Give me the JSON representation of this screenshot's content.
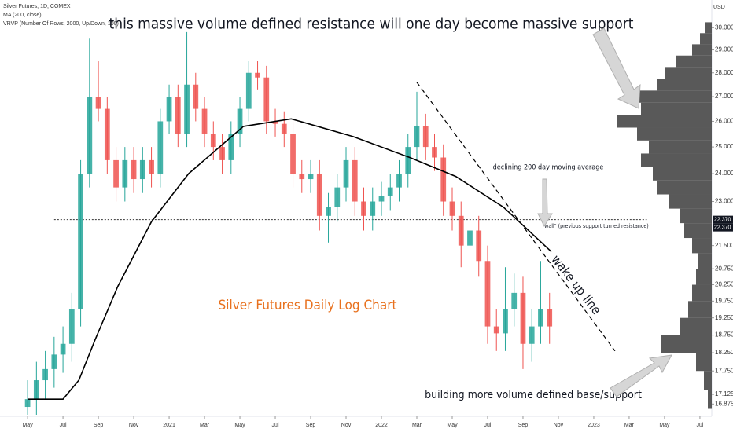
{
  "chart_data": {
    "type": "candlestick",
    "legend_lines": [
      "Silver Futures, 1D, COMEX",
      "MA (200, close)",
      "VRVP (Number Of Rows, 2000, Up/Down, 100)"
    ],
    "y_axis_label": "USD",
    "log_scale": true,
    "up_color": "#26a69a",
    "down_color": "#ef5350",
    "xlim": [
      -1.56,
      38.67
    ],
    "ylim": [
      16.56,
      31.3
    ],
    "xticks": [
      {
        "value": 0,
        "label": "May"
      },
      {
        "value": 2,
        "label": "Jul"
      },
      {
        "value": 4,
        "label": "Sep"
      },
      {
        "value": 6,
        "label": "Nov"
      },
      {
        "value": 8,
        "label": "2021"
      },
      {
        "value": 10,
        "label": "Mar"
      },
      {
        "value": 12,
        "label": "May"
      },
      {
        "value": 14,
        "label": "Jul"
      },
      {
        "value": 16,
        "label": "Sep"
      },
      {
        "value": 18,
        "label": "Nov"
      },
      {
        "value": 20,
        "label": "2022"
      },
      {
        "value": 22,
        "label": "Mar"
      },
      {
        "value": 24,
        "label": "May"
      },
      {
        "value": 26,
        "label": "Jul"
      },
      {
        "value": 28,
        "label": "Sep"
      },
      {
        "value": 30,
        "label": "Nov"
      },
      {
        "value": 32,
        "label": "2023"
      },
      {
        "value": 34,
        "label": "Mar"
      },
      {
        "value": 36,
        "label": "May"
      },
      {
        "value": 38,
        "label": "Jul"
      }
    ],
    "yticks": [
      {
        "value": 30,
        "label": "30.000"
      },
      {
        "value": 29,
        "label": "29.000"
      },
      {
        "value": 28,
        "label": "28.000"
      },
      {
        "value": 27,
        "label": "27.000"
      },
      {
        "value": 26,
        "label": "26.000"
      },
      {
        "value": 25,
        "label": "25.000"
      },
      {
        "value": 24,
        "label": "24.000"
      },
      {
        "value": 23,
        "label": "23.000"
      },
      {
        "value": 21.5,
        "label": "21.500"
      },
      {
        "value": 20.75,
        "label": "20.750"
      },
      {
        "value": 20.25,
        "label": "20.250"
      },
      {
        "value": 19.75,
        "label": "19.750"
      },
      {
        "value": 19.25,
        "label": "19.250"
      },
      {
        "value": 18.75,
        "label": "18.750"
      },
      {
        "value": 18.25,
        "label": "18.250"
      },
      {
        "value": 17.75,
        "label": "17.750"
      },
      {
        "value": 17.125,
        "label": "17.125"
      },
      {
        "value": 16.875,
        "label": "16.875"
      }
    ],
    "price_labels": [
      {
        "value": 22.37,
        "label": "22.370"
      },
      {
        "value": 22.37,
        "label": "22.370"
      }
    ],
    "candles": {
      "x": [
        0,
        0.5,
        1,
        1.5,
        2,
        2.5,
        3,
        3.5,
        4,
        4.5,
        5,
        5.5,
        6,
        6.5,
        7,
        7.5,
        8,
        8.5,
        9,
        9.5,
        10,
        10.5,
        11,
        11.5,
        12,
        12.5,
        13,
        13.5,
        14,
        14.5,
        15,
        15.5,
        16,
        16.5,
        17,
        17.5,
        18,
        18.5,
        19,
        19.5,
        20,
        20.5,
        21,
        21.5,
        22,
        22.5,
        23,
        23.5,
        24,
        24.5,
        25,
        25.5,
        26,
        26.5,
        27,
        27.5,
        28,
        28.5,
        29,
        29.5
      ],
      "open": [
        16.8,
        17,
        17.5,
        17.8,
        18.2,
        18.5,
        19.5,
        24,
        27,
        26.5,
        24.5,
        23.5,
        24.5,
        23.8,
        24.5,
        24,
        26,
        27,
        25.5,
        27.5,
        26.5,
        25.5,
        25,
        24.5,
        25.5,
        26.5,
        28,
        27.8,
        26,
        25.9,
        25.5,
        24,
        23.8,
        24,
        22.5,
        22.8,
        23.5,
        24.5,
        23,
        22.5,
        23,
        23.2,
        23.5,
        24,
        25,
        25.8,
        25,
        24.6,
        23,
        22.5,
        21.5,
        22,
        21,
        19,
        18.8,
        19.5,
        20,
        18.5,
        19,
        19.5
      ],
      "high": [
        17.5,
        18,
        18.3,
        18.7,
        19,
        20,
        24.5,
        29.5,
        28.5,
        27,
        25,
        25,
        25,
        25,
        25,
        26.5,
        27.5,
        27.5,
        29.8,
        28,
        27,
        26,
        25.5,
        26,
        27,
        28.5,
        28.5,
        28.3,
        26.5,
        26.4,
        26,
        24.5,
        24.5,
        24.5,
        23.3,
        24,
        25,
        25,
        23.5,
        23.5,
        23.7,
        24,
        24.5,
        25.5,
        27.2,
        26.3,
        25.5,
        25.1,
        23.5,
        23,
        22.5,
        22.5,
        21.5,
        19.5,
        20.8,
        20.6,
        20.5,
        19.5,
        21,
        20
      ],
      "low": [
        16.6,
        16.6,
        17,
        17.3,
        17.7,
        18,
        19,
        23.5,
        26,
        24,
        23,
        23,
        23.3,
        23.3,
        23.5,
        23.5,
        25.5,
        25,
        25,
        26,
        25,
        24.5,
        24,
        24,
        25,
        26,
        27.3,
        25.5,
        25.4,
        25,
        23.5,
        23.3,
        23.3,
        22,
        21.6,
        22.3,
        23,
        22.5,
        22,
        22,
        22.5,
        22.7,
        23,
        23.5,
        24.5,
        24.5,
        24.1,
        22.5,
        22,
        20.8,
        21,
        20.5,
        18.5,
        18.3,
        18.3,
        19,
        17.8,
        18,
        18.5,
        18.5
      ],
      "close": [
        17,
        17.5,
        17.8,
        18.2,
        18.5,
        19.5,
        24,
        27,
        26.5,
        24.5,
        23.5,
        24.5,
        23.8,
        24.5,
        24,
        26,
        27,
        25.5,
        27.5,
        26.5,
        25.5,
        25,
        24.5,
        25.5,
        26.5,
        28,
        27.8,
        26,
        25.9,
        25.5,
        24,
        23.8,
        24,
        22.5,
        22.8,
        23.5,
        24.5,
        23,
        22.5,
        23,
        23.2,
        23.5,
        24,
        25,
        25.8,
        25,
        24.6,
        23,
        22.5,
        21.5,
        22,
        21,
        19,
        18.8,
        19.5,
        20,
        18.5,
        19,
        19.5,
        19
      ]
    },
    "moving_average": {
      "name": "MA (200, close)",
      "color": "#000000",
      "x": [
        0,
        2,
        2.9,
        3.8,
        5.1,
        7,
        9.1,
        12.2,
        14.9,
        18.4,
        21.6,
        24.2,
        26.9,
        29.6
      ],
      "values": [
        17.0,
        17.0,
        17.5,
        18.6,
        20.2,
        22.3,
        24.0,
        25.8,
        26.1,
        25.4,
        24.6,
        23.9,
        22.8,
        21.3
      ]
    },
    "wall_level": {
      "value": 22.37,
      "x": [
        1.5,
        35
      ]
    },
    "trendline": {
      "x": [
        22,
        33.2
      ],
      "values": [
        27.6,
        18.3
      ]
    },
    "volume_profile": {
      "color": "#3c3c3c",
      "levels": [
        17,
        17.5,
        18,
        18.5,
        19,
        19.5,
        20,
        20.5,
        21,
        21.5,
        22,
        22.5,
        23,
        23.5,
        24,
        24.5,
        25,
        25.5,
        26,
        26.5,
        27,
        27.5,
        28,
        28.5,
        29,
        29.5,
        30
      ],
      "values": [
        5,
        10,
        20,
        65,
        40,
        30,
        25,
        20,
        18,
        25,
        35,
        40,
        55,
        70,
        75,
        90,
        80,
        95,
        120,
        90,
        100,
        70,
        60,
        45,
        25,
        15,
        8
      ]
    },
    "annotations": {
      "top": "this massive volume defined resistance will one day become massive support",
      "ma": "declining 200 day moving average",
      "wall": "\"wall\" (previous support turned resistance)",
      "trend": "wake up line",
      "title": "Silver Futures Daily Log Chart",
      "base": "building more volume defined base/support"
    }
  }
}
